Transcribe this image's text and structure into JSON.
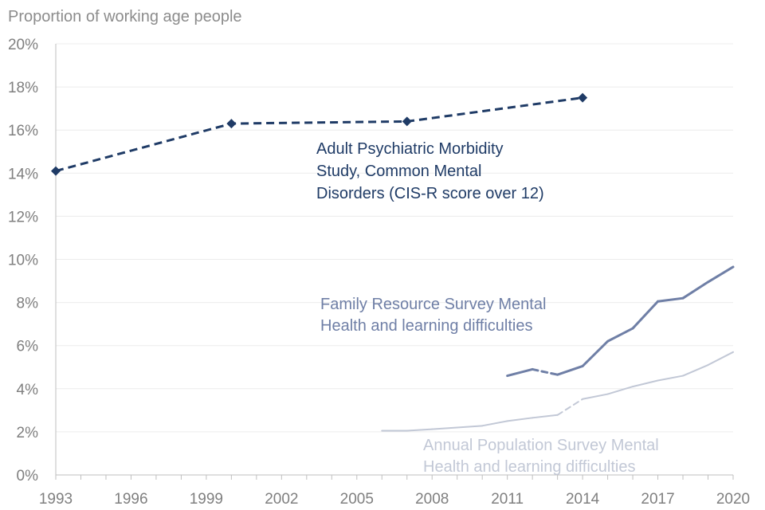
{
  "chart_data": {
    "type": "line",
    "ylabel": "Proportion of working age people",
    "ylim": [
      0,
      20
    ],
    "xlim": [
      1993,
      2020
    ],
    "yticks": [
      "0%",
      "2%",
      "4%",
      "6%",
      "8%",
      "10%",
      "12%",
      "14%",
      "16%",
      "18%",
      "20%"
    ],
    "ytick_values": [
      0,
      2,
      4,
      6,
      8,
      10,
      12,
      14,
      16,
      18,
      20
    ],
    "xticks": [
      "1993",
      "1996",
      "1999",
      "2002",
      "2005",
      "2008",
      "2011",
      "2014",
      "2017",
      "2020"
    ],
    "xtick_values": [
      1993,
      1996,
      1999,
      2002,
      2005,
      2008,
      2011,
      2014,
      2017,
      2020
    ],
    "grid": "horizontal",
    "series": [
      {
        "name": "Adult Psychiatric Morbidity Study, Common Mental Disorders (CIS-R score over 12)",
        "label_lines": [
          "Adult Psychiatric Morbidity",
          "Study, Common Mental",
          "Disorders (CIS-R score over 12)"
        ],
        "color": "#1f3b66",
        "style": "dashed-markers",
        "x": [
          1993,
          2000,
          2007,
          2014
        ],
        "y": [
          14.1,
          16.3,
          16.4,
          17.5
        ]
      },
      {
        "name": "Family Resource Survey Mental Health and learning difficulties",
        "label_lines": [
          "Family Resource Survey Mental",
          "Health and learning difficulties"
        ],
        "color": "#6f7fa6",
        "style": "solid",
        "dashed_segment": [
          2012,
          2013
        ],
        "x": [
          2011,
          2012,
          2013,
          2014,
          2015,
          2016,
          2017,
          2018,
          2019,
          2020
        ],
        "y": [
          4.6,
          4.9,
          4.65,
          5.05,
          6.2,
          6.8,
          8.05,
          8.2,
          8.95,
          9.65
        ]
      },
      {
        "name": "Annual Population Survey Mental Health and learning difficulties",
        "label_lines": [
          "Annual Population Survey Mental",
          "Health and learning difficulties"
        ],
        "color": "#c2c8d6",
        "style": "solid",
        "dashed_segment": [
          2013,
          2014
        ],
        "x": [
          2006,
          2007,
          2008,
          2009,
          2010,
          2011,
          2012,
          2013,
          2014,
          2015,
          2016,
          2017,
          2018,
          2019,
          2020
        ],
        "y": [
          2.05,
          2.05,
          2.12,
          2.2,
          2.28,
          2.5,
          2.65,
          2.78,
          3.52,
          3.75,
          4.1,
          4.38,
          4.6,
          5.1,
          5.7
        ]
      }
    ]
  }
}
